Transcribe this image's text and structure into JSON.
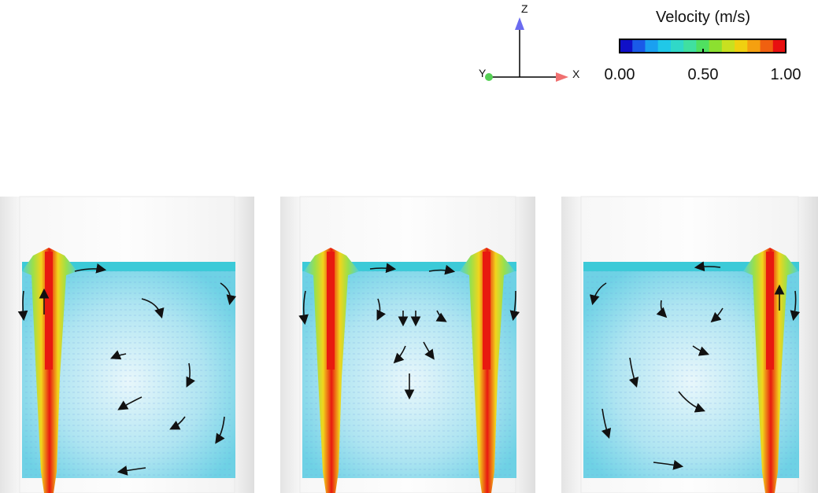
{
  "axes": {
    "z": "Z",
    "y": "Y",
    "x": "X"
  },
  "colorbar": {
    "title": "Velocity (m/s)",
    "tick_labels": [
      "0.00",
      "0.50",
      "1.00"
    ]
  }
}
